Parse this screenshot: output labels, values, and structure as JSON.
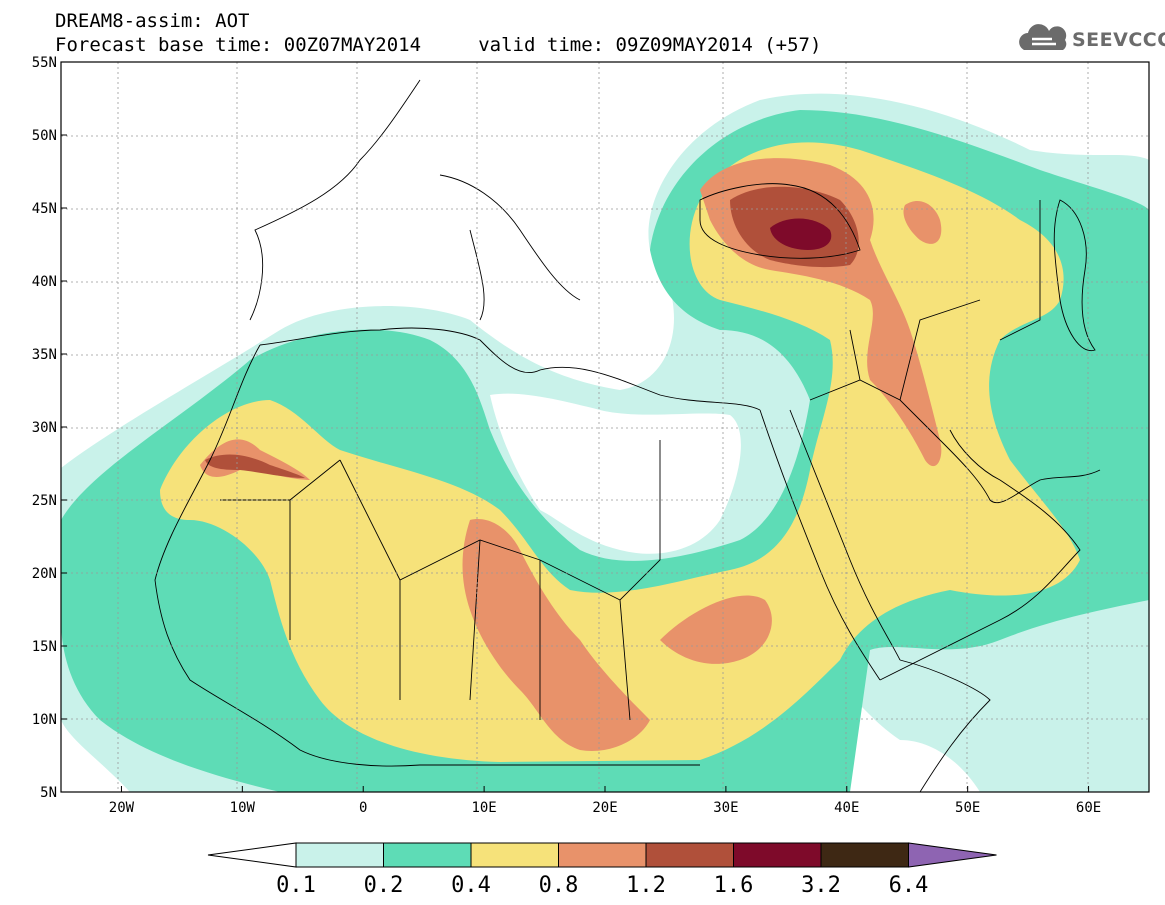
{
  "header": {
    "title_line1": "DREAM8-assim: AOT",
    "title_line2": "Forecast base time: 00Z07MAY2014     valid time: 09Z09MAY2014 (+57)",
    "logo_text": "SEEVCCC",
    "logo_icon": "cloud-logo-icon"
  },
  "map": {
    "lon_range": [
      -25,
      65
    ],
    "lat_range": [
      5,
      55
    ],
    "gridlines": "dashed",
    "lat_ticks": [
      {
        "value": 55,
        "label": "55N"
      },
      {
        "value": 50,
        "label": "50N"
      },
      {
        "value": 45,
        "label": "45N"
      },
      {
        "value": 40,
        "label": "40N"
      },
      {
        "value": 35,
        "label": "35N"
      },
      {
        "value": 30,
        "label": "30N"
      },
      {
        "value": 25,
        "label": "25N"
      },
      {
        "value": 20,
        "label": "20N"
      },
      {
        "value": 15,
        "label": "15N"
      },
      {
        "value": 10,
        "label": "10N"
      },
      {
        "value": 5,
        "label": "5N"
      }
    ],
    "lon_ticks": [
      {
        "value": -20,
        "label": "20W"
      },
      {
        "value": -10,
        "label": "10W"
      },
      {
        "value": 0,
        "label": "0"
      },
      {
        "value": 10,
        "label": "10E"
      },
      {
        "value": 20,
        "label": "20E"
      },
      {
        "value": 30,
        "label": "30E"
      },
      {
        "value": 40,
        "label": "40E"
      },
      {
        "value": 50,
        "label": "50E"
      },
      {
        "value": 60,
        "label": "60E"
      }
    ]
  },
  "legend": {
    "labels": [
      "0.1",
      "0.2",
      "0.4",
      "0.8",
      "1.2",
      "1.6",
      "3.2",
      "6.4"
    ],
    "colors": [
      "#ffffff",
      "#c9f2ea",
      "#5edcb6",
      "#f6e27a",
      "#e8926a",
      "#b0503a",
      "#7e0a2a",
      "#3e2814",
      "#8e64b2"
    ]
  },
  "colors": {
    "level_0.1": "#c9f2ea",
    "level_0.2": "#5edcb6",
    "level_0.4": "#f6e27a",
    "level_0.8": "#e8926a",
    "level_1.2": "#b0503a",
    "level_1.6": "#7e0a2a"
  }
}
